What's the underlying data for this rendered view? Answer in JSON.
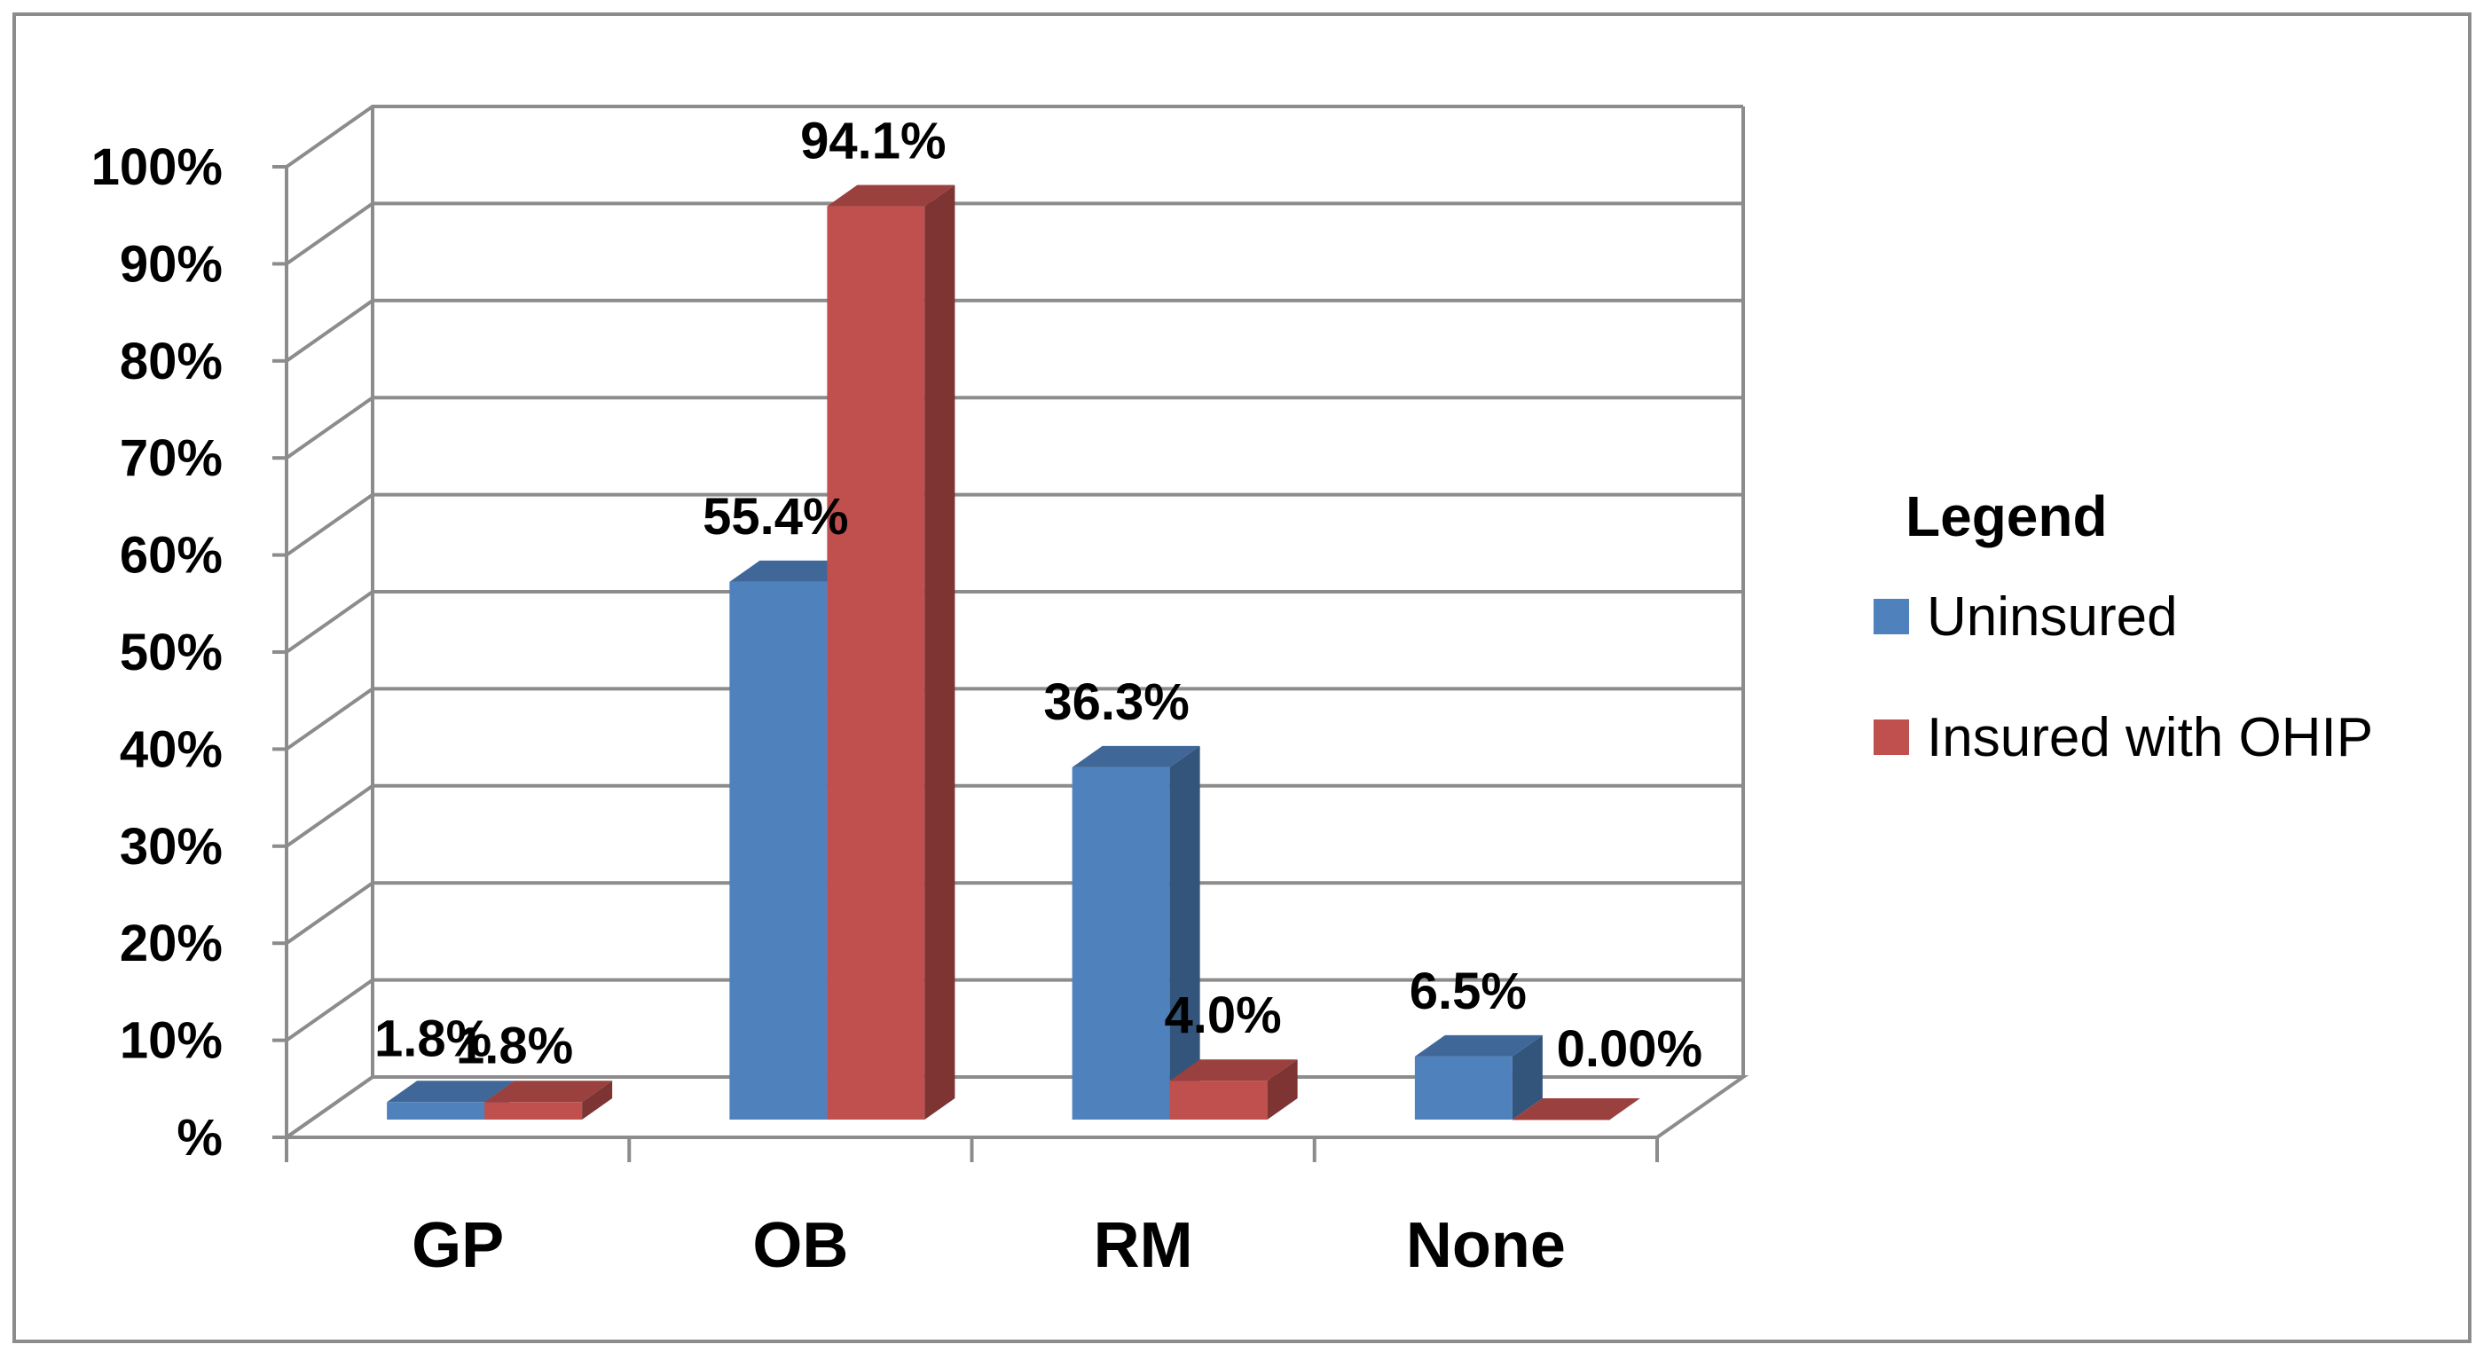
{
  "chart_data": {
    "type": "bar",
    "style": "3d-clustered-column",
    "categories": [
      "GP",
      "OB",
      "RM",
      "None"
    ],
    "series": [
      {
        "name": "Uninsured",
        "values": [
          1.8,
          55.4,
          36.3,
          6.5
        ],
        "labels": [
          "1.8%",
          "55.4%",
          "36.3%",
          "6.5%"
        ],
        "color": "#4f81bd"
      },
      {
        "name": "Insured with OHIP",
        "values": [
          1.8,
          94.1,
          4.0,
          0.0
        ],
        "labels": [
          "1.8%",
          "94.1%",
          "4.0%",
          "0.00%"
        ],
        "color": "#c0504d"
      }
    ],
    "yticks": [
      "%",
      "10%",
      "20%",
      "30%",
      "40%",
      "50%",
      "60%",
      "70%",
      "80%",
      "90%",
      "100%"
    ],
    "ylim": [
      0,
      100
    ],
    "grid": true,
    "legend": {
      "title": "Legend",
      "position": "right"
    }
  }
}
